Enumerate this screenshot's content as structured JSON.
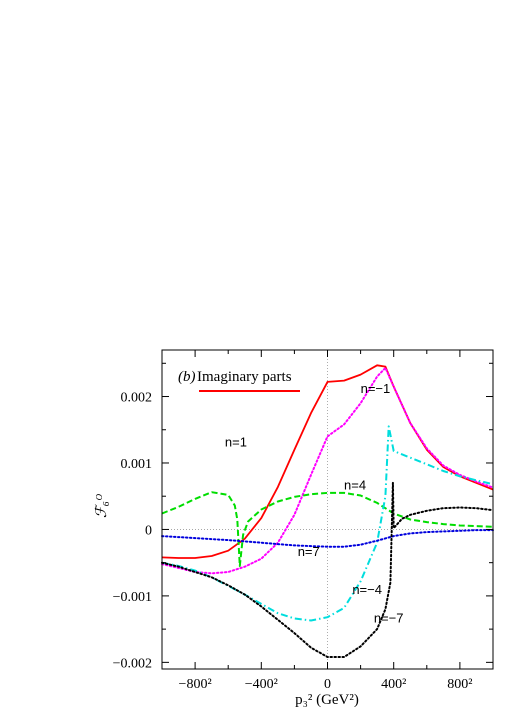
{
  "chart_data": {
    "type": "line",
    "title_prefix": "(b)",
    "title": "Imaginary parts",
    "xlabel": "p₃² (GeV²)",
    "ylabel": "ℱ₆ᴼ",
    "xlim": [
      -1000,
      1000
    ],
    "ylim": [
      -0.0021,
      0.0027
    ],
    "x_is_signed_square": true,
    "grid": false,
    "zero_lines": true,
    "xticks": [
      {
        "value": -800,
        "label": "−800²"
      },
      {
        "value": -400,
        "label": "−400²"
      },
      {
        "value": 0,
        "label": "0"
      },
      {
        "value": 400,
        "label": "400²"
      },
      {
        "value": 800,
        "label": "800²"
      }
    ],
    "yticks": [
      {
        "value": -0.002,
        "label": "−0.002"
      },
      {
        "value": -0.001,
        "label": "−0.001"
      },
      {
        "value": 0,
        "label": "0"
      },
      {
        "value": 0.001,
        "label": "0.001"
      },
      {
        "value": 0.002,
        "label": "0.002"
      }
    ],
    "series": [
      {
        "name": "n=1",
        "color": "#ff0000",
        "style": "solid",
        "x": [
          -1000,
          -900,
          -800,
          -700,
          -600,
          -500,
          -400,
          -300,
          -200,
          -100,
          0,
          100,
          200,
          300,
          350,
          400,
          500,
          600,
          700,
          800,
          900,
          1000
        ],
        "y": [
          -0.00042,
          -0.00043,
          -0.00043,
          -0.0004,
          -0.00032,
          -0.00014,
          0.00017,
          0.00064,
          0.0012,
          0.00175,
          0.00222,
          0.00224,
          0.00233,
          0.00247,
          0.00245,
          0.00215,
          0.0016,
          0.0012,
          0.00094,
          0.0008,
          0.0007,
          0.0006
        ]
      },
      {
        "name": "n=−1",
        "color": "#ff00ff",
        "style": "dotted",
        "x": [
          -1000,
          -900,
          -800,
          -700,
          -600,
          -500,
          -400,
          -300,
          -200,
          -100,
          0,
          100,
          200,
          300,
          350,
          400,
          500,
          600,
          700,
          800,
          900,
          1000
        ],
        "y": [
          -0.00052,
          -0.00058,
          -0.00064,
          -0.00066,
          -0.00064,
          -0.00056,
          -0.00044,
          -0.0002,
          0.00022,
          0.00082,
          0.0014,
          0.00158,
          0.0019,
          0.0023,
          0.00243,
          0.00215,
          0.0016,
          0.00122,
          0.00096,
          0.00082,
          0.00072,
          0.00063
        ]
      },
      {
        "name": "n=4",
        "color": "#00dd00",
        "style": "dashed",
        "x": [
          -1000,
          -900,
          -800,
          -700,
          -600,
          -560,
          -545,
          -530,
          -510,
          -480,
          -400,
          -300,
          -200,
          -100,
          0,
          100,
          200,
          300,
          400,
          500,
          600,
          700,
          800,
          900,
          1000
        ],
        "y": [
          0.00024,
          0.00034,
          0.00046,
          0.00056,
          0.00052,
          0.00036,
          0.00015,
          -0.00055,
          -8e-05,
          0.00012,
          0.0003,
          0.00042,
          0.00049,
          0.00053,
          0.00055,
          0.00055,
          0.00051,
          0.0004,
          0.00024,
          0.00015,
          0.00011,
          8e-05,
          6e-05,
          5e-05,
          4e-05
        ]
      },
      {
        "name": "n=−4",
        "color": "#00dddd",
        "style": "dashdot",
        "x": [
          -1000,
          -900,
          -800,
          -700,
          -600,
          -500,
          -400,
          -300,
          -200,
          -100,
          0,
          100,
          200,
          300,
          350,
          370,
          400,
          500,
          600,
          700,
          800,
          900,
          1000
        ],
        "y": [
          -0.0005,
          -0.00055,
          -0.00062,
          -0.00072,
          -0.00085,
          -0.00098,
          -0.00112,
          -0.00126,
          -0.00134,
          -0.00137,
          -0.00132,
          -0.00118,
          -0.00078,
          -0.0002,
          0.0005,
          0.00155,
          0.00118,
          0.00108,
          0.00098,
          0.00088,
          0.0008,
          0.00074,
          0.00068
        ]
      },
      {
        "name": "n=7",
        "color": "#0000dd",
        "style": "dotted",
        "x": [
          -1000,
          -800,
          -600,
          -400,
          -300,
          -200,
          -100,
          0,
          100,
          200,
          300,
          400,
          500,
          600,
          700,
          800,
          900,
          1000
        ],
        "y": [
          -0.0001,
          -0.00013,
          -0.00016,
          -0.0002,
          -0.00022,
          -0.00024,
          -0.00025,
          -0.00026,
          -0.00026,
          -0.00023,
          -0.00017,
          -0.0001,
          -6e-05,
          -4e-05,
          -3e-05,
          -2e-05,
          -1e-05,
          -1e-05
        ]
      },
      {
        "name": "n=−7",
        "color": "#000000",
        "style": "dotted",
        "x": [
          -1000,
          -900,
          -800,
          -700,
          -600,
          -500,
          -400,
          -300,
          -200,
          -100,
          0,
          100,
          200,
          300,
          350,
          380,
          395,
          400,
          450,
          500,
          600,
          700,
          800,
          900,
          1000
        ],
        "y": [
          -0.0005,
          -0.00056,
          -0.00064,
          -0.00072,
          -0.00084,
          -0.00098,
          -0.00116,
          -0.00136,
          -0.00156,
          -0.00178,
          -0.00192,
          -0.00192,
          -0.00176,
          -0.0015,
          -0.0012,
          -0.0008,
          0.0007,
          2e-05,
          0.00016,
          0.00022,
          0.00028,
          0.00032,
          0.00033,
          0.00032,
          0.00029
        ]
      }
    ]
  }
}
